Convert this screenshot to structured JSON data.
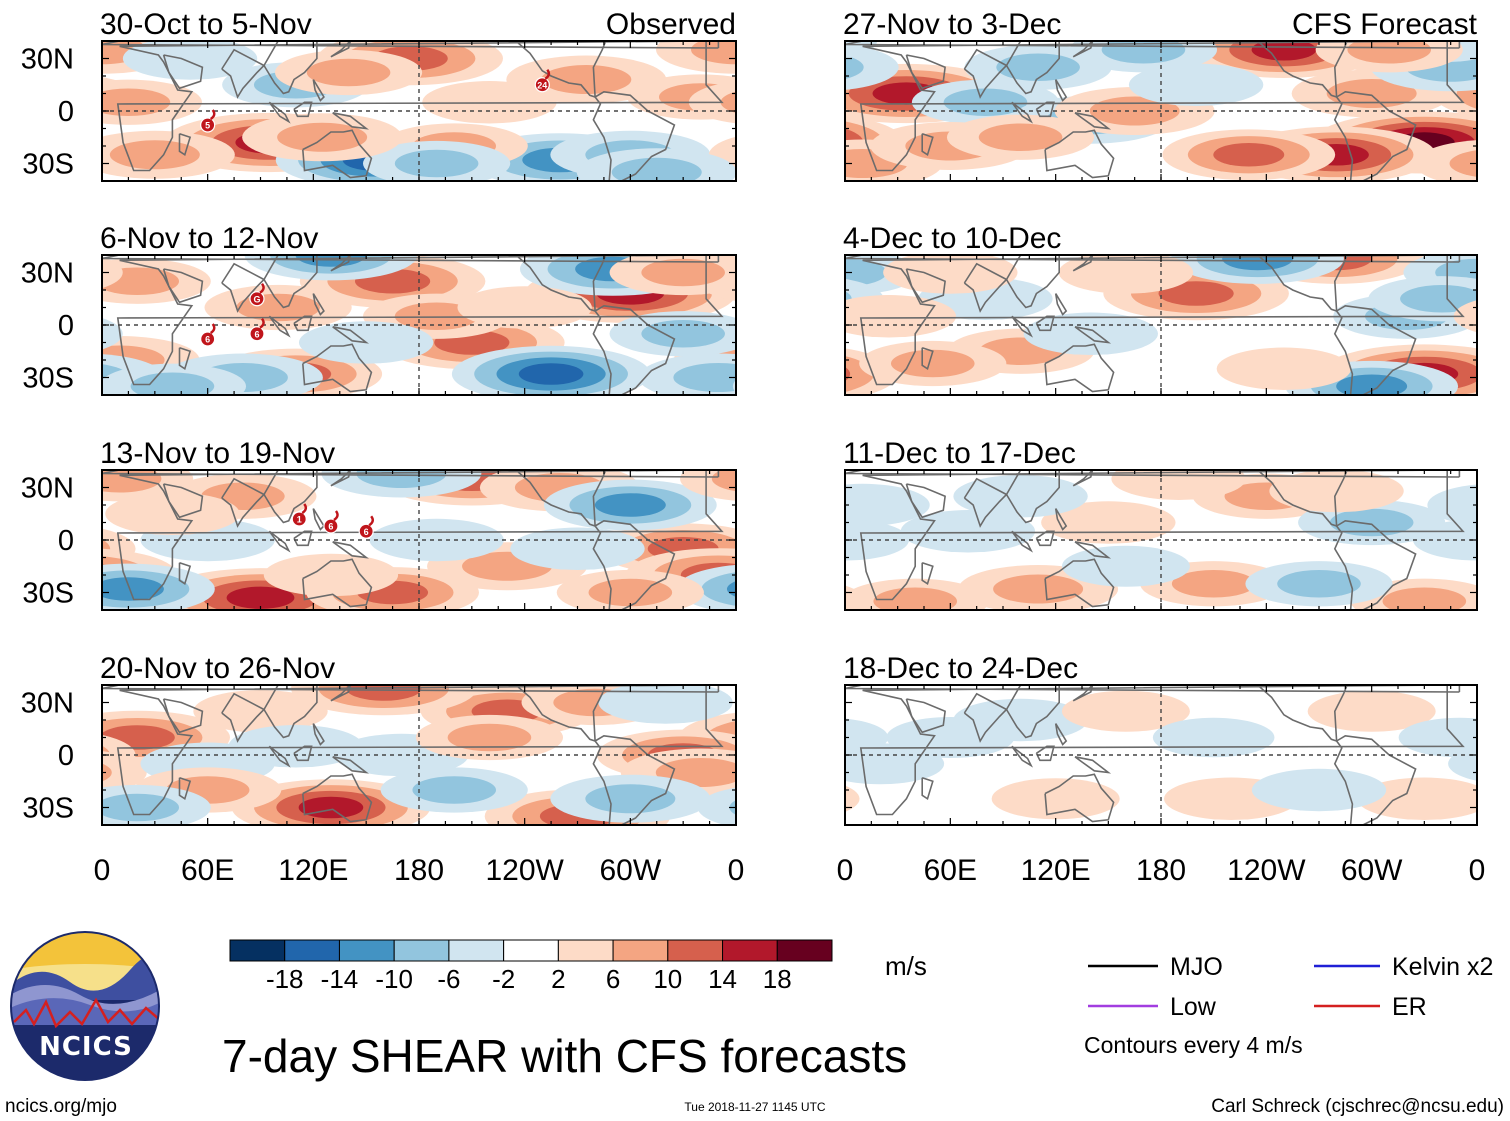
{
  "chart_data": {
    "type": "heatmap",
    "title": "7-day SHEAR with CFS forecasts",
    "units": "m/s",
    "contour_note": "Contours every 4 m/s",
    "columns": {
      "left_label": "Observed",
      "right_label": "CFS Forecast"
    },
    "x_ticks": [
      "0",
      "60E",
      "120E",
      "180",
      "120W",
      "60W",
      "0"
    ],
    "y_ticks": [
      "30N",
      "0",
      "30S"
    ],
    "panels": [
      {
        "period": "30-Oct to 5-Nov",
        "column": "observed",
        "storms": [
          {
            "label": "5",
            "lon": 60,
            "lat": -8
          },
          {
            "label": "24",
            "lon": -110,
            "lat": 15
          }
        ],
        "anomalies": [
          {
            "lon": 95,
            "lat": -18,
            "v": 18
          },
          {
            "lon": 155,
            "lat": -28,
            "v": -16
          },
          {
            "lon": -100,
            "lat": -28,
            "v": -14
          },
          {
            "lon": -60,
            "lat": -25,
            "v": -10
          },
          {
            "lon": 0,
            "lat": 35,
            "v": 10
          },
          {
            "lon": -85,
            "lat": 18,
            "v": 10
          },
          {
            "lon": 175,
            "lat": 30,
            "v": 14
          },
          {
            "lon": -160,
            "lat": -20,
            "v": 8
          },
          {
            "lon": 30,
            "lat": -25,
            "v": 10
          },
          {
            "lon": 110,
            "lat": 15,
            "v": -8
          },
          {
            "lon": -20,
            "lat": 8,
            "v": 8
          },
          {
            "lon": 50,
            "lat": 30,
            "v": -6
          },
          {
            "lon": -170,
            "lat": -30,
            "v": -8
          },
          {
            "lon": 140,
            "lat": 22,
            "v": 8
          },
          {
            "lon": -140,
            "lat": 5,
            "v": 6
          },
          {
            "lon": 15,
            "lat": 5,
            "v": 8
          },
          {
            "lon": -45,
            "lat": -35,
            "v": -10
          },
          {
            "lon": 125,
            "lat": -15,
            "v": 10
          }
        ]
      },
      {
        "period": "27-Nov to 3-Dec",
        "column": "forecast",
        "storms": [],
        "anomalies": [
          {
            "lon": 35,
            "lat": 10,
            "v": 18
          },
          {
            "lon": -30,
            "lat": -18,
            "v": 20
          },
          {
            "lon": -80,
            "lat": -25,
            "v": 16
          },
          {
            "lon": -130,
            "lat": -25,
            "v": 12
          },
          {
            "lon": -60,
            "lat": 10,
            "v": 10
          },
          {
            "lon": -110,
            "lat": 35,
            "v": 16
          },
          {
            "lon": -15,
            "lat": 25,
            "v": -10
          },
          {
            "lon": 80,
            "lat": 5,
            "v": -8
          },
          {
            "lon": 140,
            "lat": -5,
            "v": -10
          },
          {
            "lon": 165,
            "lat": 0,
            "v": 10
          },
          {
            "lon": -20,
            "lat": 40,
            "v": -6
          },
          {
            "lon": 10,
            "lat": -30,
            "v": 10
          },
          {
            "lon": 60,
            "lat": -20,
            "v": 10
          },
          {
            "lon": 110,
            "lat": 25,
            "v": -8
          },
          {
            "lon": 170,
            "lat": 35,
            "v": -8
          },
          {
            "lon": -50,
            "lat": 35,
            "v": 8
          },
          {
            "lon": -160,
            "lat": 15,
            "v": -6
          },
          {
            "lon": 100,
            "lat": -15,
            "v": 8
          }
        ]
      },
      {
        "period": "6-Nov to 12-Nov",
        "column": "observed",
        "storms": [
          {
            "label": "6",
            "lon": 60,
            "lat": -8
          },
          {
            "label": "G",
            "lon": 88,
            "lat": 15
          },
          {
            "label": "6",
            "lon": 88,
            "lat": -5
          }
        ],
        "anomalies": [
          {
            "lon": -60,
            "lat": 18,
            "v": 18
          },
          {
            "lon": -150,
            "lat": -10,
            "v": 14
          },
          {
            "lon": 10,
            "lat": -20,
            "v": 10
          },
          {
            "lon": 110,
            "lat": -28,
            "v": 12
          },
          {
            "lon": -105,
            "lat": -28,
            "v": -16
          },
          {
            "lon": -70,
            "lat": 32,
            "v": -14
          },
          {
            "lon": 165,
            "lat": 25,
            "v": 14
          },
          {
            "lon": 130,
            "lat": 40,
            "v": -12
          },
          {
            "lon": 80,
            "lat": -30,
            "v": -10
          },
          {
            "lon": -30,
            "lat": -5,
            "v": -8
          },
          {
            "lon": 20,
            "lat": 25,
            "v": 8
          },
          {
            "lon": -170,
            "lat": 5,
            "v": 8
          },
          {
            "lon": -10,
            "lat": -30,
            "v": -10
          },
          {
            "lon": 40,
            "lat": -35,
            "v": -8
          },
          {
            "lon": 150,
            "lat": -10,
            "v": -6
          },
          {
            "lon": -120,
            "lat": 10,
            "v": 6
          },
          {
            "lon": -30,
            "lat": 30,
            "v": 8
          },
          {
            "lon": 100,
            "lat": 10,
            "v": 8
          }
        ]
      },
      {
        "period": "4-Dec to 10-Dec",
        "column": "forecast",
        "storms": [],
        "anomalies": [
          {
            "lon": -30,
            "lat": -28,
            "v": 18
          },
          {
            "lon": -60,
            "lat": -35,
            "v": -12
          },
          {
            "lon": -160,
            "lat": 18,
            "v": 14
          },
          {
            "lon": -80,
            "lat": 38,
            "v": 12
          },
          {
            "lon": -125,
            "lat": 38,
            "v": -12
          },
          {
            "lon": 0,
            "lat": 30,
            "v": -8
          },
          {
            "lon": 100,
            "lat": -15,
            "v": 8
          },
          {
            "lon": 50,
            "lat": -22,
            "v": 8
          },
          {
            "lon": 140,
            "lat": -5,
            "v": -6
          },
          {
            "lon": -40,
            "lat": 5,
            "v": -8
          },
          {
            "lon": 80,
            "lat": 15,
            "v": -6
          },
          {
            "lon": 60,
            "lat": 30,
            "v": 6
          },
          {
            "lon": -110,
            "lat": -25,
            "v": 6
          },
          {
            "lon": -20,
            "lat": 15,
            "v": -8
          },
          {
            "lon": 160,
            "lat": 30,
            "v": 6
          },
          {
            "lon": 25,
            "lat": 5,
            "v": 6
          }
        ]
      },
      {
        "period": "13-Nov to 19-Nov",
        "column": "observed",
        "storms": [
          {
            "label": "1",
            "lon": 112,
            "lat": 12
          },
          {
            "label": "6",
            "lon": 130,
            "lat": 8
          },
          {
            "label": "6",
            "lon": 150,
            "lat": 5
          }
        ],
        "anomalies": [
          {
            "lon": 90,
            "lat": -33,
            "v": 18
          },
          {
            "lon": 165,
            "lat": -30,
            "v": 12
          },
          {
            "lon": -150,
            "lat": 35,
            "v": 14
          },
          {
            "lon": -100,
            "lat": 30,
            "v": 10
          },
          {
            "lon": -130,
            "lat": -15,
            "v": 10
          },
          {
            "lon": -30,
            "lat": -5,
            "v": 12
          },
          {
            "lon": -10,
            "lat": -20,
            "v": 14
          },
          {
            "lon": 15,
            "lat": -28,
            "v": -12
          },
          {
            "lon": -60,
            "lat": 20,
            "v": -12
          },
          {
            "lon": 170,
            "lat": 38,
            "v": -10
          },
          {
            "lon": 10,
            "lat": 35,
            "v": 8
          },
          {
            "lon": 80,
            "lat": 25,
            "v": 8
          },
          {
            "lon": 60,
            "lat": 0,
            "v": -6
          },
          {
            "lon": -170,
            "lat": 0,
            "v": -6
          },
          {
            "lon": -60,
            "lat": -30,
            "v": 8
          },
          {
            "lon": 130,
            "lat": -20,
            "v": 6
          },
          {
            "lon": -90,
            "lat": -5,
            "v": -6
          },
          {
            "lon": 40,
            "lat": 15,
            "v": 6
          }
        ]
      },
      {
        "period": "11-Dec to 17-Dec",
        "column": "forecast",
        "storms": [],
        "anomalies": [
          {
            "lon": 110,
            "lat": -28,
            "v": 10
          },
          {
            "lon": -30,
            "lat": -35,
            "v": 8
          },
          {
            "lon": -120,
            "lat": 25,
            "v": 8
          },
          {
            "lon": -150,
            "lat": -25,
            "v": 8
          },
          {
            "lon": 40,
            "lat": -35,
            "v": 8
          },
          {
            "lon": -60,
            "lat": 10,
            "v": -8
          },
          {
            "lon": 70,
            "lat": 5,
            "v": -6
          },
          {
            "lon": -90,
            "lat": -25,
            "v": -8
          },
          {
            "lon": 150,
            "lat": 10,
            "v": 6
          },
          {
            "lon": -80,
            "lat": 28,
            "v": 6
          },
          {
            "lon": 10,
            "lat": 20,
            "v": -6
          },
          {
            "lon": 0,
            "lat": 0,
            "v": -5
          },
          {
            "lon": 160,
            "lat": -15,
            "v": -5
          },
          {
            "lon": -170,
            "lat": 35,
            "v": 6
          },
          {
            "lon": 100,
            "lat": 25,
            "v": -6
          }
        ]
      },
      {
        "period": "20-Nov to 26-Nov",
        "column": "observed",
        "storms": [],
        "anomalies": [
          {
            "lon": 20,
            "lat": 10,
            "v": 14
          },
          {
            "lon": 130,
            "lat": -30,
            "v": 16
          },
          {
            "lon": -130,
            "lat": 25,
            "v": 12
          },
          {
            "lon": 160,
            "lat": 38,
            "v": 14
          },
          {
            "lon": -30,
            "lat": 0,
            "v": 12
          },
          {
            "lon": -20,
            "lat": -10,
            "v": 10
          },
          {
            "lon": -90,
            "lat": -35,
            "v": 14
          },
          {
            "lon": -60,
            "lat": -25,
            "v": -10
          },
          {
            "lon": -160,
            "lat": -20,
            "v": -8
          },
          {
            "lon": 170,
            "lat": 0,
            "v": -6
          },
          {
            "lon": 60,
            "lat": -5,
            "v": -6
          },
          {
            "lon": 90,
            "lat": 25,
            "v": 6
          },
          {
            "lon": -140,
            "lat": 10,
            "v": 8
          },
          {
            "lon": 60,
            "lat": -20,
            "v": 8
          },
          {
            "lon": -80,
            "lat": 30,
            "v": 8
          },
          {
            "lon": 20,
            "lat": -30,
            "v": -8
          },
          {
            "lon": -40,
            "lat": 30,
            "v": -6
          },
          {
            "lon": 110,
            "lat": 5,
            "v": -6
          }
        ]
      },
      {
        "period": "18-Dec to 24-Dec",
        "column": "forecast",
        "storms": [],
        "anomalies": [
          {
            "lon": -140,
            "lat": -25,
            "v": 6
          },
          {
            "lon": -30,
            "lat": -25,
            "v": 6
          },
          {
            "lon": 100,
            "lat": 20,
            "v": -6
          },
          {
            "lon": -90,
            "lat": -20,
            "v": -6
          },
          {
            "lon": 120,
            "lat": -25,
            "v": 5
          },
          {
            "lon": -60,
            "lat": 25,
            "v": 5
          },
          {
            "lon": 20,
            "lat": -5,
            "v": -5
          },
          {
            "lon": 60,
            "lat": 10,
            "v": -5
          },
          {
            "lon": 160,
            "lat": 25,
            "v": 5
          },
          {
            "lon": -10,
            "lat": 10,
            "v": -4
          },
          {
            "lon": -150,
            "lat": 10,
            "v": -4
          }
        ]
      }
    ],
    "colorbar": {
      "ticks": [
        "-18",
        "-14",
        "-10",
        "-6",
        "-2",
        "2",
        "6",
        "10",
        "14",
        "18"
      ],
      "colors": [
        "#053061",
        "#2166ac",
        "#4393c3",
        "#92c5de",
        "#d1e5f0",
        "#ffffff",
        "#fddbc7",
        "#f4a582",
        "#d6604d",
        "#b2182b",
        "#67001f"
      ]
    },
    "legend": [
      {
        "label": "MJO",
        "color": "#000000"
      },
      {
        "label": "Kelvin x2",
        "color": "#1f1fd6"
      },
      {
        "label": "Low",
        "color": "#a23de0"
      },
      {
        "label": "ER",
        "color": "#d42020"
      }
    ]
  },
  "logo": {
    "text": "NCICS"
  },
  "footer": {
    "url": "ncics.org/mjo",
    "timestamp": "Tue 2018-11-27 1145 UTC",
    "credit": "Carl Schreck (cjschrec@ncsu.edu)"
  }
}
